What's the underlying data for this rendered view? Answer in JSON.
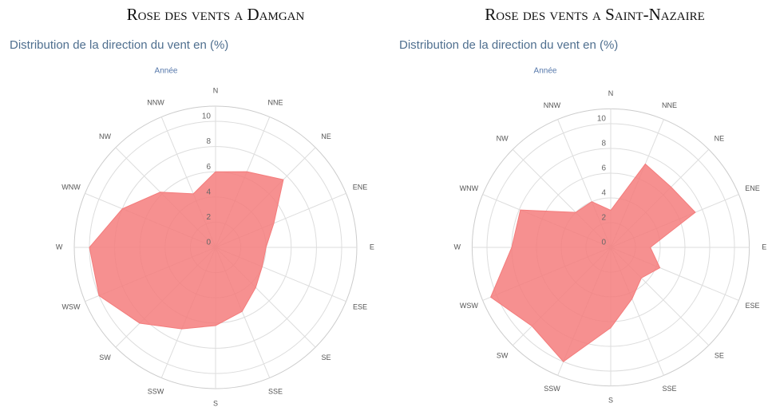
{
  "chart_data": [
    {
      "type": "radar",
      "title": "Rose des vents a Damgan",
      "subtitle": "Distribution de la direction du vent en (%)",
      "label": "Année",
      "categories": [
        "N",
        "NNE",
        "NE",
        "ENE",
        "E",
        "ESE",
        "SE",
        "SSE",
        "S",
        "SSW",
        "SW",
        "WSW",
        "W",
        "WNW",
        "NW",
        "NNW"
      ],
      "values": [
        6,
        6.5,
        7.6,
        5,
        4,
        4,
        4.5,
        5.5,
        6.2,
        7,
        8.5,
        10,
        10,
        8,
        6.2,
        4.6
      ],
      "color": "#f47c7c",
      "ylim": [
        0,
        10
      ],
      "yticks": [
        0,
        2,
        4,
        6,
        8,
        10
      ],
      "grid": true
    },
    {
      "type": "radar",
      "title": "Rose des vents a Saint-Nazaire",
      "subtitle": "Distribution de la direction du vent en (%)",
      "label": "Année",
      "categories": [
        "N",
        "NNE",
        "NE",
        "ENE",
        "E",
        "ESE",
        "SE",
        "SSE",
        "S",
        "SSW",
        "SW",
        "WSW",
        "W",
        "WNW",
        "NW",
        "NNW"
      ],
      "values": [
        3,
        7.3,
        6.9,
        7.4,
        3.2,
        4.3,
        3.5,
        4.5,
        6.5,
        10,
        9,
        10.5,
        8,
        7.9,
        4,
        4
      ],
      "color": "#f47c7c",
      "ylim": [
        0,
        10
      ],
      "yticks": [
        0,
        2,
        4,
        6,
        8,
        10
      ],
      "grid": true
    }
  ]
}
